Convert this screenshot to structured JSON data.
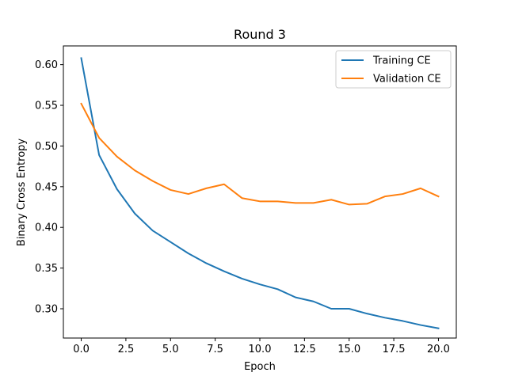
{
  "chart_data": {
    "type": "line",
    "title": "Round 3",
    "xlabel": "Epoch",
    "ylabel": "Binary Cross Entropy",
    "xlim": [
      -1.0,
      21.0
    ],
    "ylim": [
      0.264,
      0.623
    ],
    "xticks": [
      0.0,
      2.5,
      5.0,
      7.5,
      10.0,
      12.5,
      15.0,
      17.5,
      20.0
    ],
    "xtick_labels": [
      "0.0",
      "2.5",
      "5.0",
      "7.5",
      "10.0",
      "12.5",
      "15.0",
      "17.5",
      "20.0"
    ],
    "yticks": [
      0.3,
      0.35,
      0.4,
      0.45,
      0.5,
      0.55,
      0.6
    ],
    "ytick_labels": [
      "0.30",
      "0.35",
      "0.40",
      "0.45",
      "0.50",
      "0.55",
      "0.60"
    ],
    "grid": false,
    "legend_position": "top-right",
    "x": [
      0,
      1,
      2,
      3,
      4,
      5,
      6,
      7,
      8,
      9,
      10,
      11,
      12,
      13,
      14,
      15,
      16,
      17,
      18,
      19,
      20
    ],
    "series": [
      {
        "name": "Training CE",
        "color": "#1f77b4",
        "values": [
          0.608,
          0.489,
          0.447,
          0.417,
          0.396,
          0.382,
          0.368,
          0.356,
          0.346,
          0.337,
          0.33,
          0.324,
          0.314,
          0.309,
          0.3,
          0.3,
          0.294,
          0.289,
          0.285,
          0.28,
          0.276
        ]
      },
      {
        "name": "Validation CE",
        "color": "#ff7f0e",
        "values": [
          0.552,
          0.51,
          0.487,
          0.47,
          0.457,
          0.446,
          0.441,
          0.448,
          0.453,
          0.436,
          0.432,
          0.432,
          0.43,
          0.43,
          0.434,
          0.428,
          0.429,
          0.438,
          0.441,
          0.448,
          0.438
        ]
      }
    ]
  }
}
